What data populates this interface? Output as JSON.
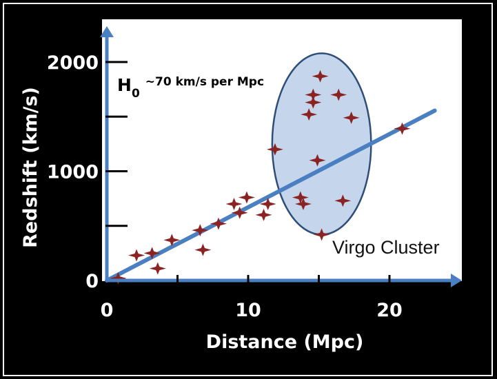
{
  "colors": {
    "background": "#000000",
    "plot_area": "#ffffff",
    "axis": "#4a7fc1",
    "fit_line": "#4a7fc1",
    "marker": "#8b2323",
    "ellipse_fill": "#c5d6ec",
    "ellipse_stroke": "#2e4e78"
  },
  "chart_data": {
    "type": "scatter",
    "xlabel": "Distance (Mpc)",
    "ylabel": "Redshift (km/s)",
    "xlim": [
      0,
      25
    ],
    "ylim": [
      0,
      2000
    ],
    "x_ticks": [
      0,
      5,
      10,
      15,
      20
    ],
    "x_tick_labels": [
      "0",
      "",
      "10",
      "",
      "20"
    ],
    "y_ticks": [
      0,
      500,
      1000,
      1500,
      2000
    ],
    "y_tick_labels": [
      "0",
      "",
      "1000",
      "",
      "2000"
    ],
    "grid": false,
    "annotation": {
      "text": "~70 km/s per Mpc",
      "prefix": "H",
      "subscript": "0"
    },
    "cluster": {
      "label": "Virgo Cluster",
      "center": [
        15.2,
        1250
      ],
      "radius": [
        3.5,
        830
      ]
    },
    "fit_line": {
      "x": [
        0,
        23.2
      ],
      "y": [
        0,
        1555
      ]
    },
    "points": [
      {
        "x": 0.8,
        "y": 20
      },
      {
        "x": 2.1,
        "y": 230
      },
      {
        "x": 3.2,
        "y": 250
      },
      {
        "x": 3.6,
        "y": 110
      },
      {
        "x": 4.6,
        "y": 370
      },
      {
        "x": 6.6,
        "y": 460
      },
      {
        "x": 6.8,
        "y": 280
      },
      {
        "x": 7.9,
        "y": 520
      },
      {
        "x": 9.0,
        "y": 700
      },
      {
        "x": 9.4,
        "y": 620
      },
      {
        "x": 9.9,
        "y": 760
      },
      {
        "x": 11.1,
        "y": 600
      },
      {
        "x": 11.4,
        "y": 700
      },
      {
        "x": 11.9,
        "y": 1200
      },
      {
        "x": 13.7,
        "y": 760
      },
      {
        "x": 13.9,
        "y": 700
      },
      {
        "x": 14.3,
        "y": 1520
      },
      {
        "x": 14.6,
        "y": 1630
      },
      {
        "x": 14.6,
        "y": 1700
      },
      {
        "x": 14.9,
        "y": 1100
      },
      {
        "x": 15.1,
        "y": 1870
      },
      {
        "x": 15.2,
        "y": 420
      },
      {
        "x": 16.4,
        "y": 1700
      },
      {
        "x": 16.7,
        "y": 730
      },
      {
        "x": 17.3,
        "y": 1490
      },
      {
        "x": 20.9,
        "y": 1390
      }
    ]
  }
}
